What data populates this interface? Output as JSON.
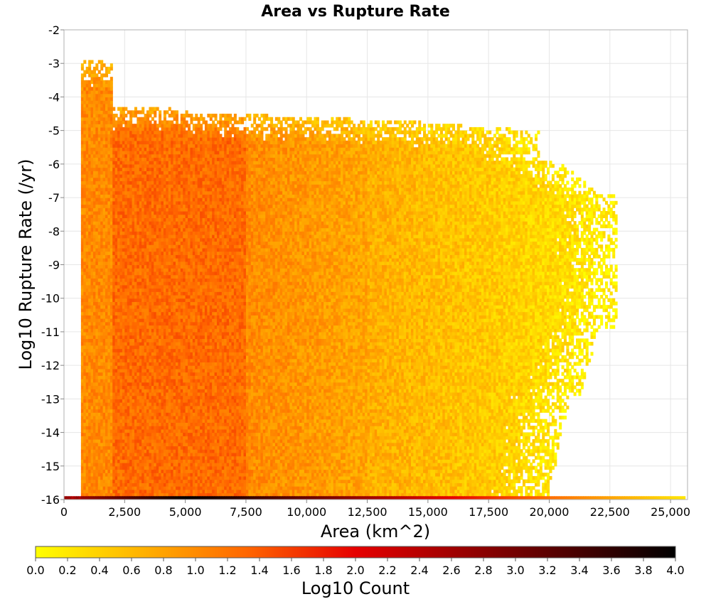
{
  "chart_data": {
    "type": "heatmap",
    "title": "Area vs Rupture Rate",
    "xlabel": "Area (km^2)",
    "ylabel": "Log10 Rupture Rate (/yr)",
    "xlim": [
      0,
      25700
    ],
    "ylim": [
      -16,
      -2
    ],
    "x_ticks": [
      "0",
      "2,500",
      "5,000",
      "7,500",
      "10,000",
      "12,500",
      "15,000",
      "17,500",
      "20,000",
      "22,500",
      "25,000"
    ],
    "y_ticks": [
      "-2",
      "-3",
      "-4",
      "-5",
      "-6",
      "-7",
      "-8",
      "-9",
      "-10",
      "-11",
      "-12",
      "-13",
      "-14",
      "-15",
      "-16"
    ],
    "grid": true,
    "colorbar": {
      "label": "Log10 Count",
      "range": [
        0.0,
        4.0
      ],
      "ticks": [
        "0.0",
        "0.2",
        "0.4",
        "0.6",
        "0.8",
        "1.0",
        "1.2",
        "1.4",
        "1.6",
        "1.8",
        "2.0",
        "2.2",
        "2.4",
        "2.6",
        "2.8",
        "3.0",
        "3.2",
        "3.4",
        "3.6",
        "3.8",
        "4.0"
      ],
      "colors": [
        "#ffff00",
        "#ff6600",
        "#e60000",
        "#000000"
      ]
    },
    "cell_size": {
      "area": 100,
      "log10_rate": 0.1
    },
    "density_regions": [
      {
        "area_range": [
          700,
          2000
        ],
        "rate_range": [
          -16,
          -3
        ],
        "log10_count": [
          0.6,
          1.3
        ]
      },
      {
        "area_range": [
          2000,
          7500
        ],
        "rate_range": [
          -16,
          -4.5
        ],
        "log10_count": [
          0.8,
          1.5
        ]
      },
      {
        "area_range": [
          7500,
          12500
        ],
        "rate_range": [
          -16,
          -4.5
        ],
        "log10_count": [
          0.6,
          1.2
        ]
      },
      {
        "area_range": [
          12500,
          17500
        ],
        "rate_range": [
          -16,
          -5
        ],
        "log10_count": [
          0.3,
          0.9
        ]
      },
      {
        "area_range": [
          17500,
          23500
        ],
        "rate_range": [
          -16,
          -5
        ],
        "log10_count": [
          0.0,
          0.6
        ]
      }
    ],
    "bottom_row": {
      "log10_rate": -16,
      "area_range": [
        0,
        25600
      ],
      "log10_count_peak": 4.0,
      "peak_area": 5000
    }
  }
}
